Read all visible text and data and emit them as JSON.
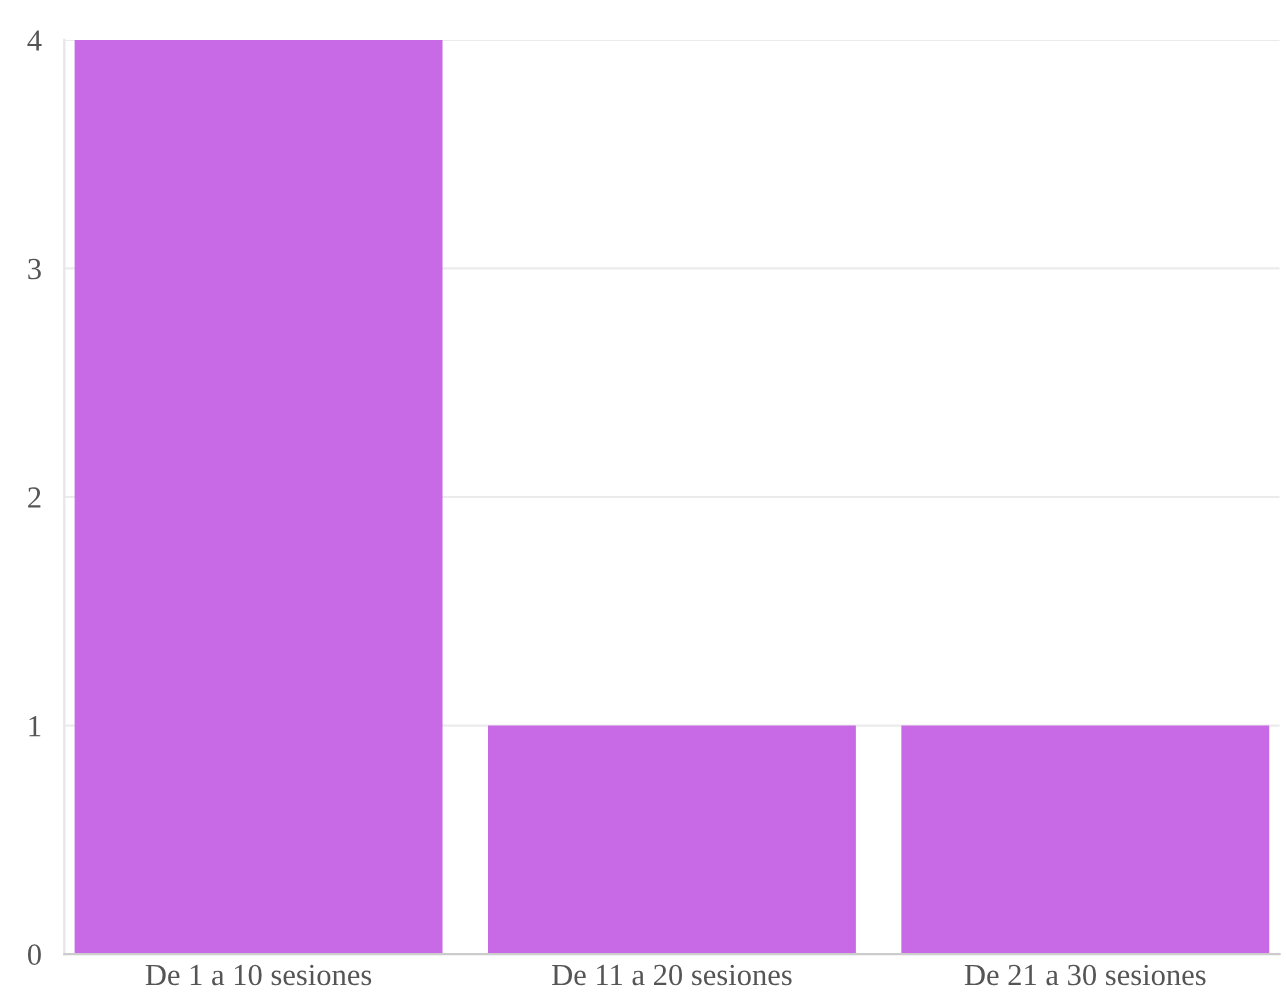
{
  "chart_data": {
    "type": "bar",
    "categories": [
      "De 1 a 10 sesiones",
      "De 11 a 20 sesiones",
      "De 21 a 30 sesiones"
    ],
    "values": [
      4,
      1,
      1
    ],
    "color": "#c869e6",
    "ylim": [
      0,
      4
    ],
    "yticks": [
      0,
      1,
      2,
      3,
      4
    ],
    "grid": "y",
    "legend": false
  }
}
